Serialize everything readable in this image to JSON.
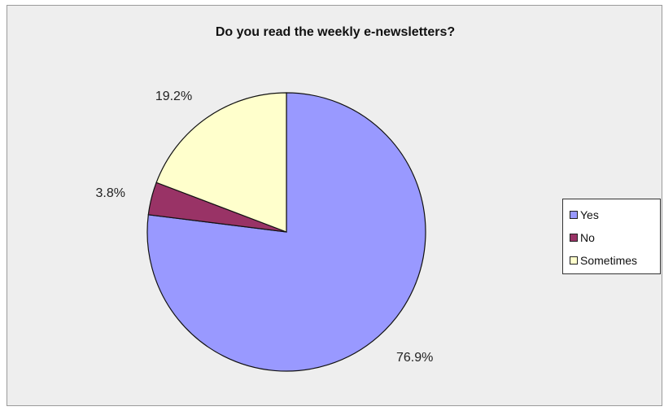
{
  "chart_data": {
    "type": "pie",
    "title": "Do you read the weekly e-newsletters?",
    "slices": [
      {
        "label": "Yes",
        "value": 76.9,
        "display": "76.9%",
        "color": "#9999ff"
      },
      {
        "label": "No",
        "value": 3.8,
        "display": "3.8%",
        "color": "#993366"
      },
      {
        "label": "Sometimes",
        "value": 19.2,
        "display": "19.2%",
        "color": "#ffffcc"
      }
    ],
    "start_angle": "12 o'clock, clockwise",
    "legend_position": "right",
    "background": "#eeeeee"
  }
}
